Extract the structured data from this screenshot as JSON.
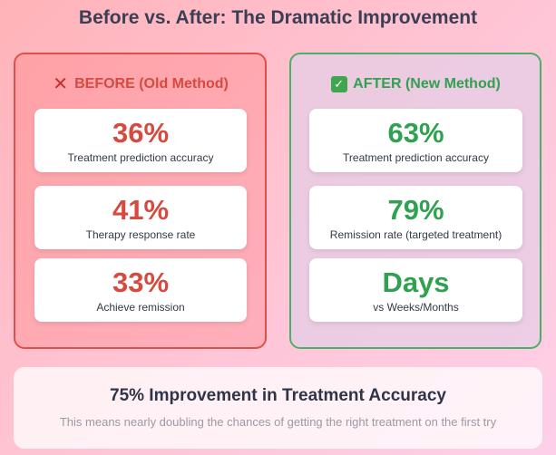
{
  "title": "Before vs. After: The Dramatic Improvement",
  "before": {
    "icon": "cross-mark-icon",
    "label": "BEFORE (Old Method)",
    "accent": "#d64a3f",
    "cards": [
      {
        "value": "36%",
        "label": "Treatment prediction accuracy"
      },
      {
        "value": "41%",
        "label": "Therapy response rate"
      },
      {
        "value": "33%",
        "label": "Achieve remission"
      }
    ]
  },
  "after": {
    "icon": "check-mark-icon",
    "label": "AFTER (New Method)",
    "accent": "#2fa150",
    "cards": [
      {
        "value": "63%",
        "label": "Treatment prediction accuracy"
      },
      {
        "value": "79%",
        "label": "Remission rate (targeted treatment)"
      },
      {
        "value": "Days",
        "label": "vs Weeks/Months"
      }
    ]
  },
  "summary": {
    "title": "75% Improvement in Treatment Accuracy",
    "subtitle": "This means nearly doubling the chances of getting the right treatment on the first try"
  }
}
